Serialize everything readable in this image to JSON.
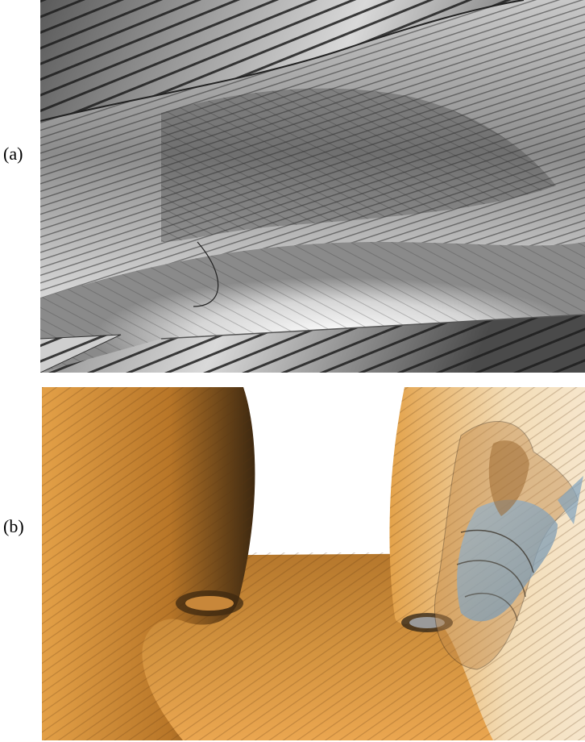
{
  "figure": {
    "panels": [
      {
        "label": "(a)",
        "icon": "grayscale-stream-surface-image"
      },
      {
        "label": "(b)",
        "icon": "orange-vortex-stream-surface-image"
      }
    ],
    "colors": {
      "panel_a_light": "#f4f4f4",
      "panel_a_dark": "#3a3a3a",
      "panel_b_orange": "#d98f32",
      "panel_b_dark": "#3d2810",
      "panel_b_light": "#f6e6cc",
      "panel_b_blue": "#7fa2bf"
    }
  }
}
